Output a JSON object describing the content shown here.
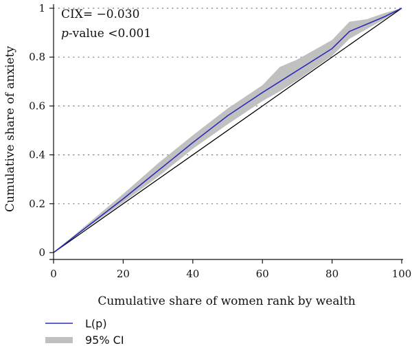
{
  "chart_data": {
    "type": "line",
    "xlabel": "Cumulative share of women rank by wealth",
    "ylabel": "Cumulative share of anxiety",
    "xlim": [
      0,
      100
    ],
    "ylim": [
      0,
      1
    ],
    "x_ticks": [
      0,
      20,
      40,
      60,
      80,
      100
    ],
    "x_tick_labels": [
      "0",
      "20",
      "40",
      "60",
      "80",
      "100"
    ],
    "y_ticks": [
      0,
      0.2,
      0.4,
      0.6,
      0.8,
      1
    ],
    "y_tick_labels": [
      "0",
      "0.2",
      "0.4",
      "0.6",
      "0.8",
      "1"
    ],
    "grid": "horizontal dotted",
    "annotations": {
      "cix_label": "CIX= −0.030",
      "pvalue_italic": "p",
      "pvalue_rest": "-value <0.001"
    },
    "series": [
      {
        "name": "L(p)",
        "color": "#2b2bb8",
        "x": [
          0,
          10,
          20,
          30,
          40,
          50,
          60,
          70,
          80,
          85,
          90,
          95,
          100
        ],
        "y": [
          0,
          0.11,
          0.22,
          0.335,
          0.45,
          0.56,
          0.655,
          0.745,
          0.835,
          0.905,
          0.935,
          0.965,
          1.0
        ]
      },
      {
        "name": "95% CI",
        "color": "#c0c0c0",
        "x": [
          0,
          10,
          20,
          30,
          40,
          50,
          60,
          65,
          70,
          80,
          85,
          90,
          95,
          100
        ],
        "lower": [
          0,
          0.105,
          0.205,
          0.31,
          0.425,
          0.525,
          0.62,
          0.66,
          0.705,
          0.805,
          0.875,
          0.915,
          0.955,
          1.0
        ],
        "upper": [
          0,
          0.12,
          0.24,
          0.365,
          0.48,
          0.59,
          0.685,
          0.76,
          0.79,
          0.87,
          0.945,
          0.955,
          0.98,
          1.0
        ]
      },
      {
        "name": "equality line",
        "color": "#000000",
        "x": [
          0,
          100
        ],
        "y": [
          0,
          1
        ]
      }
    ],
    "legend": {
      "position": "bottom-left",
      "items": [
        {
          "label": "L(p)",
          "color": "#2b2bb8",
          "kind": "line"
        },
        {
          "label": "95% CI",
          "color": "#c0c0c0",
          "kind": "band"
        }
      ]
    }
  }
}
